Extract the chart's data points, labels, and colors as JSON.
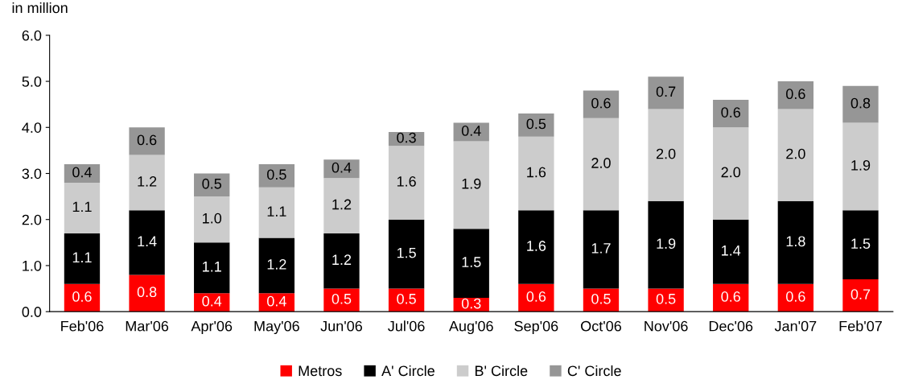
{
  "chart_data": {
    "type": "bar",
    "stacked": true,
    "ylabel": "in million",
    "categories": [
      "Feb'06",
      "Mar'06",
      "Apr'06",
      "May'06",
      "Jun'06",
      "Jul'06",
      "Aug'06",
      "Sep'06",
      "Oct'06",
      "Nov'06",
      "Dec'06",
      "Jan'07",
      "Feb'07"
    ],
    "series": [
      {
        "name": "Metros",
        "color": "#ff0000",
        "values": [
          0.6,
          0.8,
          0.4,
          0.4,
          0.5,
          0.5,
          0.3,
          0.6,
          0.5,
          0.5,
          0.6,
          0.6,
          0.7
        ],
        "value_labels": [
          "0.6",
          "0.8",
          "0.4",
          "0.4",
          "0.5",
          "0.5",
          "0.3",
          "0.6",
          "0.5",
          "0.5",
          "0.6",
          "0.6",
          "0.7"
        ]
      },
      {
        "name": "A' Circle",
        "color": "#000000",
        "values": [
          1.1,
          1.4,
          1.1,
          1.2,
          1.2,
          1.5,
          1.5,
          1.6,
          1.7,
          1.9,
          1.4,
          1.8,
          1.5
        ],
        "value_labels": [
          "1.1",
          "1.4",
          "1.1",
          "1.2",
          "1.2",
          "1.5",
          "1.5",
          "1.6",
          "1.7",
          "1.9",
          "1.4",
          "1.8",
          "1.5"
        ]
      },
      {
        "name": "B' Circle",
        "color": "#cccccc",
        "values": [
          1.1,
          1.2,
          1.0,
          1.1,
          1.2,
          1.6,
          1.9,
          1.6,
          2.0,
          2.0,
          2.0,
          2.0,
          1.9
        ],
        "value_labels": [
          "1.1",
          "1.2",
          "1.0",
          "1.1",
          "1.2",
          "1.6",
          "1.9",
          "1.6",
          "2.0",
          "2.0",
          "2.0",
          "2.0",
          "1.9"
        ]
      },
      {
        "name": "C' Circle",
        "color": "#969696",
        "values": [
          0.4,
          0.6,
          0.5,
          0.5,
          0.4,
          0.3,
          0.4,
          0.5,
          0.6,
          0.7,
          0.6,
          0.6,
          0.8
        ],
        "value_labels": [
          "0.4",
          "0.6",
          "0.5",
          "0.5",
          "0.4",
          "0.3",
          "0.4",
          "0.5",
          "0.6",
          "0.7",
          "0.6",
          "0.6",
          "0.8"
        ]
      }
    ],
    "ylim": [
      0,
      6
    ],
    "yticks": [
      {
        "value": 0,
        "label": "0.0"
      },
      {
        "value": 1,
        "label": "1.0"
      },
      {
        "value": 2,
        "label": "2.0"
      },
      {
        "value": 3,
        "label": "3.0"
      },
      {
        "value": 4,
        "label": "4.0"
      },
      {
        "value": 5,
        "label": "5.0"
      },
      {
        "value": 6,
        "label": "6.0"
      }
    ],
    "legend": "bottom"
  }
}
